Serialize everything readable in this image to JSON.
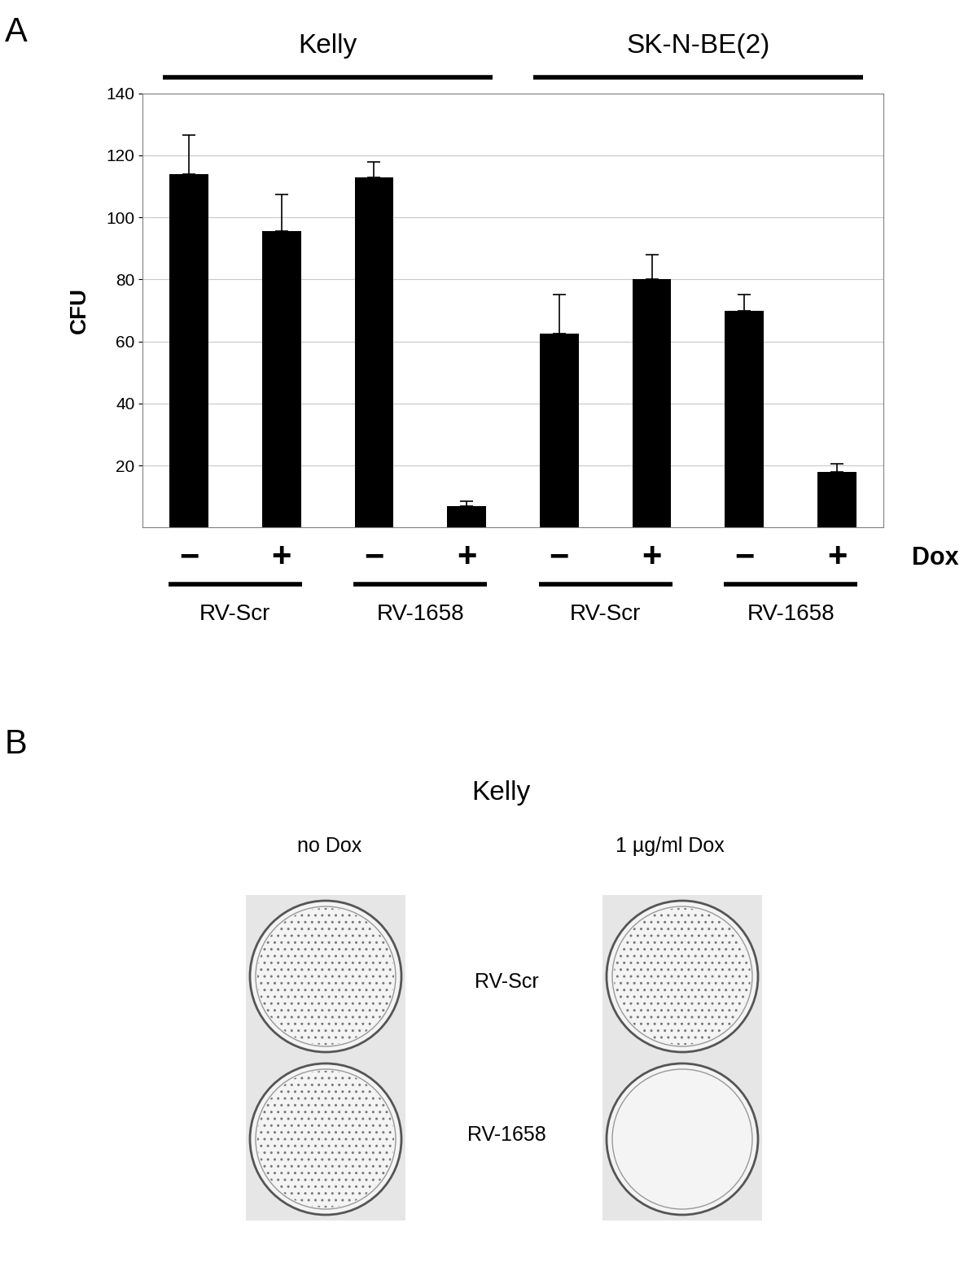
{
  "chart_data": {
    "type": "bar",
    "panel_label": "A",
    "y_label": "CFU",
    "x_label": "Dox",
    "categories": [
      "−",
      "+",
      "−",
      "+",
      "−",
      "+",
      "−",
      "+"
    ],
    "group_labels": [
      "RV-Scr",
      "RV-Scr",
      "RV-1658",
      "RV-1658",
      "RV-Scr",
      "RV-Scr",
      "RV-1658",
      "RV-1658"
    ],
    "cell_lines": [
      "Kelly",
      "Kelly",
      "Kelly",
      "Kelly",
      "SK-N-BE(2)",
      "SK-N-BE(2)",
      "SK-N-BE(2)",
      "SK-N-BE(2)"
    ],
    "values": [
      114,
      95.5,
      113,
      7,
      62.5,
      80,
      70,
      18
    ],
    "errors": [
      12.5,
      12,
      5,
      1.5,
      12.5,
      8,
      5,
      2.5
    ],
    "color": "#000000",
    "ylim": [
      0,
      140
    ],
    "yticks": [
      20,
      40,
      60,
      80,
      100,
      120,
      140
    ],
    "grid": true
  },
  "panel_b": {
    "panel_label": "B",
    "title": "Kelly",
    "columns": [
      "no Dox",
      "1 µg/ml Dox"
    ],
    "rows": [
      "RV-Scr",
      "RV-1658"
    ],
    "colonies": [
      [
        true,
        true
      ],
      [
        true,
        false
      ]
    ]
  }
}
